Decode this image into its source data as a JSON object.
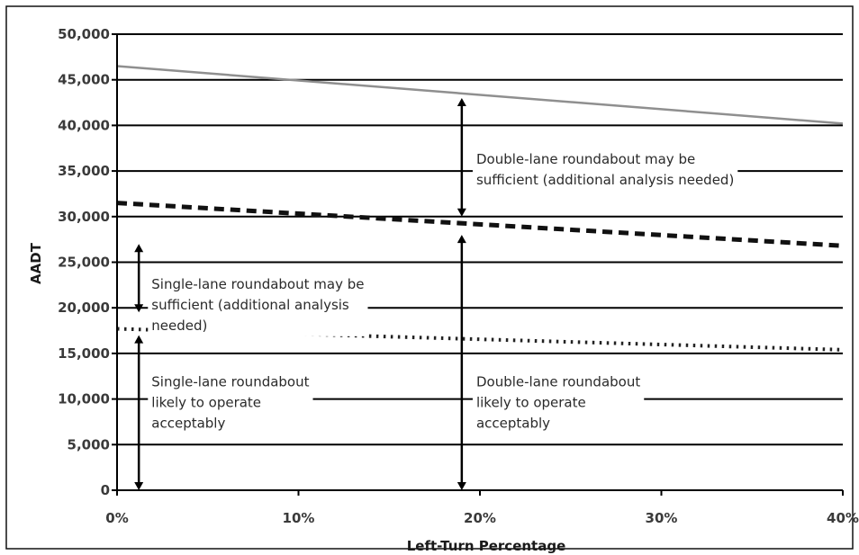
{
  "chart_data": {
    "type": "line",
    "title": "",
    "xlabel": "Left-Turn Percentage",
    "ylabel": "AADT",
    "xlim": [
      0,
      40
    ],
    "ylim": [
      0,
      50000
    ],
    "x_ticks": [
      0,
      10,
      20,
      30,
      40
    ],
    "x_tick_labels": [
      "0%",
      "10%",
      "20%",
      "30%",
      "40%"
    ],
    "y_ticks": [
      0,
      5000,
      10000,
      15000,
      20000,
      25000,
      30000,
      35000,
      40000,
      45000,
      50000
    ],
    "y_tick_labels": [
      "0",
      "5,000",
      "10,000",
      "15,000",
      "20,000",
      "25,000",
      "30,000",
      "35,000",
      "40,000",
      "45,000",
      "50,000"
    ],
    "grid": "horizontal",
    "series": [
      {
        "style": "solid-gray",
        "x": [
          0,
          40
        ],
        "y": [
          46500,
          40200
        ]
      },
      {
        "style": "dashed",
        "x": [
          0,
          40
        ],
        "y": [
          31500,
          26800
        ]
      },
      {
        "style": "dotted",
        "x": [
          0,
          40
        ],
        "y": [
          17700,
          15400
        ]
      }
    ],
    "range_arrows": [
      {
        "x": 1.2,
        "from": 0,
        "to": 17000
      },
      {
        "x": 1.2,
        "from": 19500,
        "to": 27000
      },
      {
        "x": 19,
        "from": 0,
        "to": 28000
      },
      {
        "x": 19,
        "from": 30000,
        "to": 43000
      }
    ],
    "annotations": [
      {
        "lines": [
          "Double-lane roundabout may be",
          "sufficient (additional analysis needed)"
        ],
        "x": 19.8,
        "y": 36300
      },
      {
        "lines": [
          "Single-lane roundabout may be",
          "sufficient (additional analysis",
          "needed)"
        ],
        "x": 1.9,
        "y": 22600
      },
      {
        "lines": [
          "Single-lane roundabout",
          "likely to operate",
          "acceptably"
        ],
        "x": 1.9,
        "y": 11900
      },
      {
        "lines": [
          "Double-lane roundabout",
          "likely to operate",
          "acceptably"
        ],
        "x": 19.8,
        "y": 11900
      }
    ]
  }
}
